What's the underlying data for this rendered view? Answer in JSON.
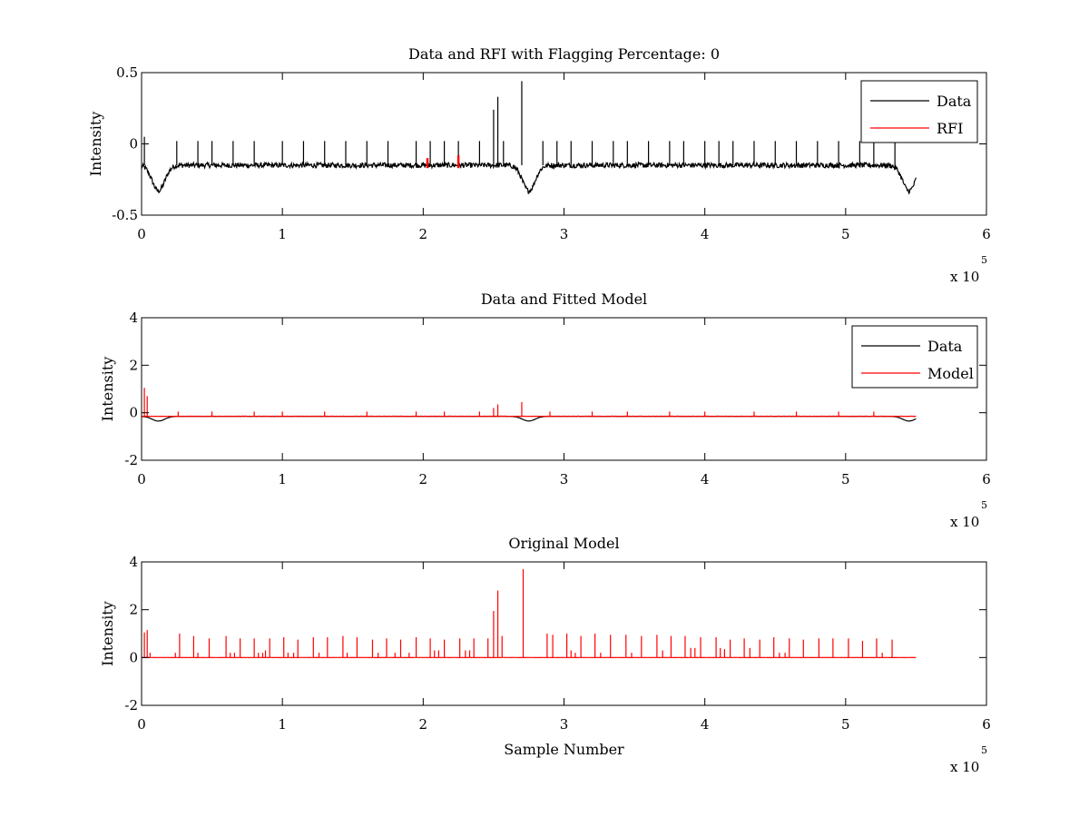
{
  "chart_data": [
    {
      "type": "line",
      "title": "Data and RFI with Flagging Percentage: 0",
      "xlabel": "",
      "ylabel": "Intensity",
      "xlim": [
        0,
        600000
      ],
      "ylim": [
        -0.5,
        0.5
      ],
      "xticks": [
        0,
        1,
        2,
        3,
        4,
        5,
        6
      ],
      "xtick_labels": [
        "0",
        "1",
        "2",
        "3",
        "4",
        "5",
        "6"
      ],
      "yticks": [
        -0.5,
        0,
        0.5
      ],
      "ytick_labels": [
        "-0.5",
        "0",
        "0.5"
      ],
      "x_exponent_label": "x 10",
      "x_exponent_power": "5",
      "grid": false,
      "legend_position": "top-right",
      "series": [
        {
          "name": "Data",
          "color": "#000000",
          "baseline": -0.15,
          "x_end": 550000,
          "dips": [
            {
              "x": 12000,
              "depth": -0.33
            },
            {
              "x": 275000,
              "depth": -0.33
            },
            {
              "x": 545000,
              "depth": -0.33
            }
          ],
          "spikes": [
            {
              "x": 2000,
              "y": 0.05
            },
            {
              "x": 25000,
              "y": 0.02
            },
            {
              "x": 40000,
              "y": 0.02
            },
            {
              "x": 50000,
              "y": 0.02
            },
            {
              "x": 65000,
              "y": 0.02
            },
            {
              "x": 80000,
              "y": 0.02
            },
            {
              "x": 100000,
              "y": 0.02
            },
            {
              "x": 115000,
              "y": 0.02
            },
            {
              "x": 130000,
              "y": 0.02
            },
            {
              "x": 145000,
              "y": 0.02
            },
            {
              "x": 160000,
              "y": 0.02
            },
            {
              "x": 175000,
              "y": 0.02
            },
            {
              "x": 195000,
              "y": 0.02
            },
            {
              "x": 205000,
              "y": 0.02
            },
            {
              "x": 215000,
              "y": 0.02
            },
            {
              "x": 225000,
              "y": 0.02
            },
            {
              "x": 240000,
              "y": 0.02
            },
            {
              "x": 250000,
              "y": 0.24
            },
            {
              "x": 253000,
              "y": 0.33
            },
            {
              "x": 257000,
              "y": 0.02
            },
            {
              "x": 270000,
              "y": 0.44
            },
            {
              "x": 285000,
              "y": 0.02
            },
            {
              "x": 295000,
              "y": 0.02
            },
            {
              "x": 305000,
              "y": 0.02
            },
            {
              "x": 320000,
              "y": 0.02
            },
            {
              "x": 335000,
              "y": 0.02
            },
            {
              "x": 345000,
              "y": 0.02
            },
            {
              "x": 360000,
              "y": 0.02
            },
            {
              "x": 375000,
              "y": 0.02
            },
            {
              "x": 385000,
              "y": 0.02
            },
            {
              "x": 400000,
              "y": 0.02
            },
            {
              "x": 410000,
              "y": 0.02
            },
            {
              "x": 420000,
              "y": 0.02
            },
            {
              "x": 435000,
              "y": 0.02
            },
            {
              "x": 450000,
              "y": 0.02
            },
            {
              "x": 465000,
              "y": 0.02
            },
            {
              "x": 480000,
              "y": 0.02
            },
            {
              "x": 495000,
              "y": 0.02
            },
            {
              "x": 510000,
              "y": 0.02
            },
            {
              "x": 520000,
              "y": 0.02
            },
            {
              "x": 535000,
              "y": 0.02
            }
          ]
        },
        {
          "name": "RFI",
          "color": "#ff0000",
          "segments": [
            {
              "x": 203000,
              "y_low": -0.17,
              "y_high": -0.1
            },
            {
              "x": 225000,
              "y_low": -0.17,
              "y_high": -0.08
            }
          ]
        }
      ]
    },
    {
      "type": "line",
      "title": "Data and Fitted Model",
      "xlabel": "",
      "ylabel": "Intensity",
      "xlim": [
        0,
        600000
      ],
      "ylim": [
        -2,
        4
      ],
      "xticks": [
        0,
        1,
        2,
        3,
        4,
        5,
        6
      ],
      "xtick_labels": [
        "0",
        "1",
        "2",
        "3",
        "4",
        "5",
        "6"
      ],
      "yticks": [
        -2,
        0,
        2,
        4
      ],
      "ytick_labels": [
        "-2",
        "0",
        "2",
        "4"
      ],
      "x_exponent_label": "x 10",
      "x_exponent_power": "5",
      "grid": false,
      "legend_position": "top-right",
      "series": [
        {
          "name": "Data",
          "color": "#000000",
          "baseline": -0.15,
          "x_end": 550000,
          "dips": [
            {
              "x": 12000,
              "depth": -0.35
            },
            {
              "x": 275000,
              "depth": -0.35
            },
            {
              "x": 545000,
              "depth": -0.35
            }
          ]
        },
        {
          "name": "Model",
          "color": "#ff0000",
          "baseline": -0.15,
          "x_end": 550000,
          "spikes": [
            {
              "x": 2000,
              "y": 1.05
            },
            {
              "x": 4000,
              "y": 0.7
            },
            {
              "x": 26000,
              "y": 0.05
            },
            {
              "x": 50000,
              "y": 0.05
            },
            {
              "x": 80000,
              "y": 0.05
            },
            {
              "x": 100000,
              "y": 0.05
            },
            {
              "x": 130000,
              "y": 0.05
            },
            {
              "x": 160000,
              "y": 0.05
            },
            {
              "x": 195000,
              "y": 0.05
            },
            {
              "x": 215000,
              "y": 0.05
            },
            {
              "x": 240000,
              "y": 0.05
            },
            {
              "x": 250000,
              "y": 0.2
            },
            {
              "x": 253000,
              "y": 0.35
            },
            {
              "x": 270000,
              "y": 0.45
            },
            {
              "x": 290000,
              "y": 0.05
            },
            {
              "x": 320000,
              "y": 0.05
            },
            {
              "x": 345000,
              "y": 0.05
            },
            {
              "x": 375000,
              "y": 0.05
            },
            {
              "x": 400000,
              "y": 0.05
            },
            {
              "x": 435000,
              "y": 0.05
            },
            {
              "x": 465000,
              "y": 0.05
            },
            {
              "x": 495000,
              "y": 0.05
            },
            {
              "x": 520000,
              "y": 0.05
            }
          ]
        }
      ]
    },
    {
      "type": "line",
      "title": "Original Model",
      "xlabel": "Sample Number",
      "ylabel": "Intensity",
      "xlim": [
        0,
        600000
      ],
      "ylim": [
        -2,
        4
      ],
      "xticks": [
        0,
        1,
        2,
        3,
        4,
        5,
        6
      ],
      "xtick_labels": [
        "0",
        "1",
        "2",
        "3",
        "4",
        "5",
        "6"
      ],
      "yticks": [
        -2,
        0,
        2,
        4
      ],
      "ytick_labels": [
        "-2",
        "0",
        "2",
        "4"
      ],
      "x_exponent_label": "x 10",
      "x_exponent_power": "5",
      "grid": false,
      "series": [
        {
          "color": "#ff0000",
          "baseline": 0,
          "x_end": 550000,
          "spikes": [
            {
              "x": 2000,
              "y": 1.05
            },
            {
              "x": 4000,
              "y": 1.15
            },
            {
              "x": 6000,
              "y": 0.2
            },
            {
              "x": 24000,
              "y": 0.2
            },
            {
              "x": 27000,
              "y": 1.0
            },
            {
              "x": 37000,
              "y": 0.9
            },
            {
              "x": 40000,
              "y": 0.2
            },
            {
              "x": 48000,
              "y": 0.8
            },
            {
              "x": 60000,
              "y": 0.9
            },
            {
              "x": 63000,
              "y": 0.2
            },
            {
              "x": 66000,
              "y": 0.2
            },
            {
              "x": 70000,
              "y": 0.8
            },
            {
              "x": 80000,
              "y": 0.8
            },
            {
              "x": 83000,
              "y": 0.2
            },
            {
              "x": 86000,
              "y": 0.2
            },
            {
              "x": 88000,
              "y": 0.3
            },
            {
              "x": 91000,
              "y": 0.8
            },
            {
              "x": 101000,
              "y": 0.85
            },
            {
              "x": 104000,
              "y": 0.2
            },
            {
              "x": 108000,
              "y": 0.2
            },
            {
              "x": 111000,
              "y": 0.75
            },
            {
              "x": 122000,
              "y": 0.85
            },
            {
              "x": 126000,
              "y": 0.2
            },
            {
              "x": 132000,
              "y": 0.85
            },
            {
              "x": 143000,
              "y": 0.9
            },
            {
              "x": 146000,
              "y": 0.2
            },
            {
              "x": 153000,
              "y": 0.85
            },
            {
              "x": 164000,
              "y": 0.75
            },
            {
              "x": 168000,
              "y": 0.2
            },
            {
              "x": 174000,
              "y": 0.8
            },
            {
              "x": 180000,
              "y": 0.2
            },
            {
              "x": 184000,
              "y": 0.75
            },
            {
              "x": 190000,
              "y": 0.2
            },
            {
              "x": 195000,
              "y": 0.85
            },
            {
              "x": 205000,
              "y": 0.8
            },
            {
              "x": 208000,
              "y": 0.3
            },
            {
              "x": 211000,
              "y": 0.3
            },
            {
              "x": 215000,
              "y": 0.75
            },
            {
              "x": 226000,
              "y": 0.8
            },
            {
              "x": 230000,
              "y": 0.3
            },
            {
              "x": 233000,
              "y": 0.3
            },
            {
              "x": 236000,
              "y": 0.8
            },
            {
              "x": 246000,
              "y": 0.8
            },
            {
              "x": 250000,
              "y": 1.95
            },
            {
              "x": 253000,
              "y": 2.8
            },
            {
              "x": 256000,
              "y": 0.9
            },
            {
              "x": 271000,
              "y": 3.7
            },
            {
              "x": 288000,
              "y": 1.0
            },
            {
              "x": 292000,
              "y": 0.95
            },
            {
              "x": 302000,
              "y": 1.0
            },
            {
              "x": 305000,
              "y": 0.3
            },
            {
              "x": 308000,
              "y": 0.2
            },
            {
              "x": 312000,
              "y": 0.9
            },
            {
              "x": 322000,
              "y": 1.0
            },
            {
              "x": 326000,
              "y": 0.2
            },
            {
              "x": 333000,
              "y": 0.95
            },
            {
              "x": 344000,
              "y": 0.95
            },
            {
              "x": 348000,
              "y": 0.2
            },
            {
              "x": 355000,
              "y": 0.9
            },
            {
              "x": 366000,
              "y": 0.95
            },
            {
              "x": 370000,
              "y": 0.3
            },
            {
              "x": 376000,
              "y": 0.9
            },
            {
              "x": 386000,
              "y": 0.9
            },
            {
              "x": 390000,
              "y": 0.4
            },
            {
              "x": 393000,
              "y": 0.4
            },
            {
              "x": 397000,
              "y": 0.85
            },
            {
              "x": 408000,
              "y": 0.85
            },
            {
              "x": 411000,
              "y": 0.4
            },
            {
              "x": 414000,
              "y": 0.35
            },
            {
              "x": 418000,
              "y": 0.75
            },
            {
              "x": 428000,
              "y": 0.8
            },
            {
              "x": 432000,
              "y": 0.4
            },
            {
              "x": 439000,
              "y": 0.75
            },
            {
              "x": 449000,
              "y": 0.85
            },
            {
              "x": 453000,
              "y": 0.2
            },
            {
              "x": 457000,
              "y": 0.2
            },
            {
              "x": 460000,
              "y": 0.8
            },
            {
              "x": 470000,
              "y": 0.75
            },
            {
              "x": 481000,
              "y": 0.8
            },
            {
              "x": 491000,
              "y": 0.8
            },
            {
              "x": 502000,
              "y": 0.8
            },
            {
              "x": 512000,
              "y": 0.7
            },
            {
              "x": 522000,
              "y": 0.8
            },
            {
              "x": 526000,
              "y": 0.2
            },
            {
              "x": 533000,
              "y": 0.75
            }
          ]
        }
      ]
    }
  ]
}
